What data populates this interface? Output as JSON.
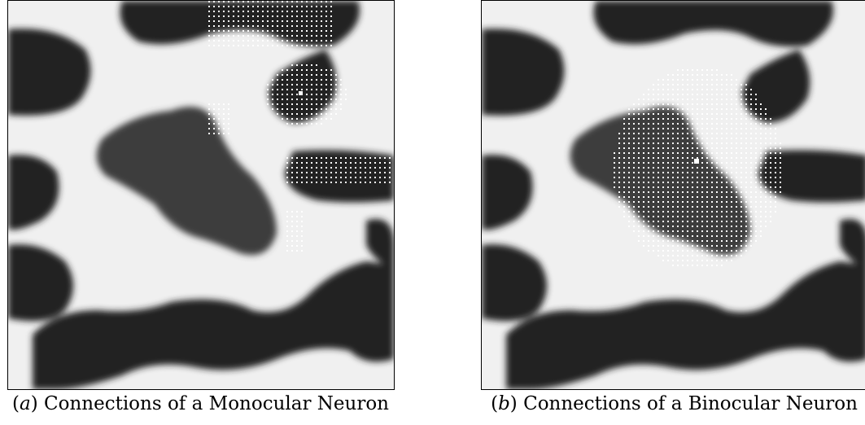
{
  "figure": {
    "panels": [
      {
        "id": "a",
        "caption_letter": "a",
        "caption_text": "Connections of a Monocular Neuron",
        "dot_color": "#ffffff",
        "background_light": "#f0f0f0",
        "background_dark": "#1e1e1e"
      },
      {
        "id": "b",
        "caption_letter": "b",
        "caption_text": "Connections of a Binocular Neuron",
        "dot_color": "#ffffff",
        "background_light": "#f0f0f0",
        "background_dark": "#1e1e1e"
      }
    ]
  }
}
